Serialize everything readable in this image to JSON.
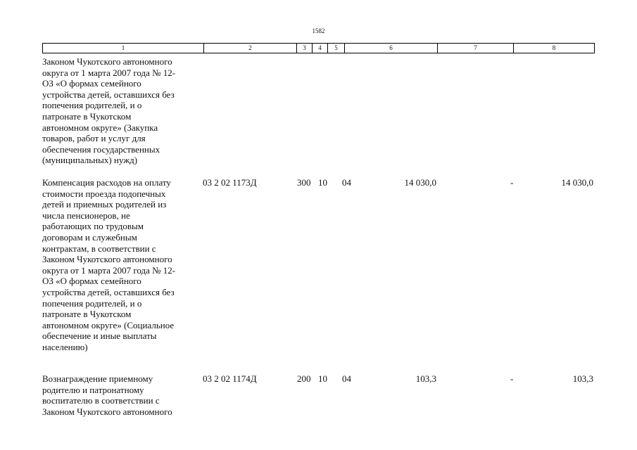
{
  "page_number": "1582",
  "header": {
    "col1": "1",
    "col2": "2",
    "col3": "3",
    "col4": "4",
    "col5": "5",
    "col6": "6",
    "col7": "7",
    "col8": "8"
  },
  "rows": [
    {
      "description": "Законом Чукотского автономного\nокруга от 1 марта 2007 года № 12-\nОЗ «О формах семейного\nустройства детей, оставшихся без\nпопечения родителей, и о\nпатронате в Чукотском\nавтономном округе» (Закупка\nтоваров, работ и услуг для\nобеспечения государственных\n(муниципальных) нужд)",
      "code": "",
      "c3": "",
      "c4": "",
      "c5": "",
      "c6": "",
      "c7": "",
      "c8": ""
    },
    {
      "description": "Компенсация расходов на оплату\nстоимости проезда подопечных\nдетей и приемных родителей из\nчисла пенсионеров, не\nработающих по трудовым\nдоговорам и служебным\nконтрактам, в соответствии с\nЗаконом Чукотского автономного\nокруга от 1 марта 2007 года № 12-\nОЗ «О формах семейного\nустройства детей, оставшихся без\nпопечения родителей, и о\nпатронате в Чукотском\nавтономном округе» (Социальное\nобеспечение и иные выплаты\nнаселению)",
      "code": "03 2 02 1173Д",
      "c3": "300",
      "c4": "10",
      "c5": "04",
      "c6": "14 030,0",
      "c7": "-",
      "c8": "14 030,0"
    },
    {
      "description": "Вознаграждение приемному\nродителю и патронатному\nвоспитателю в соответствии с\nЗаконом Чукотского автономного",
      "code": "03 2 02 1174Д",
      "c3": "200",
      "c4": "10",
      "c5": "04",
      "c6": "103,3",
      "c7": "-",
      "c8": "103,3"
    }
  ]
}
